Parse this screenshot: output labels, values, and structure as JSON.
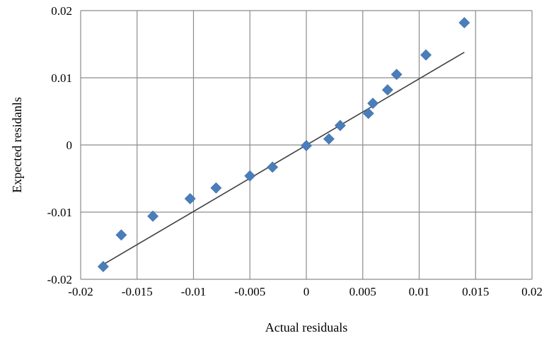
{
  "chart_data": {
    "type": "scatter",
    "title": "",
    "xlabel": "Actual residuals",
    "ylabel": "Expected residanls",
    "xlim": [
      -0.02,
      0.02
    ],
    "ylim": [
      -0.02,
      0.02
    ],
    "x_ticks": [
      -0.02,
      -0.015,
      -0.01,
      -0.005,
      0,
      0.005,
      0.01,
      0.015,
      0.02
    ],
    "x_tick_labels": [
      "-0.02",
      "-0.015",
      "-0.01",
      "-0.005",
      "0",
      "0.005",
      "0.01",
      "0.015",
      "0.02"
    ],
    "y_ticks": [
      0.02,
      0.01,
      0,
      -0.01,
      -0.02
    ],
    "y_tick_labels": [
      "0.02",
      "0.01",
      "0",
      "-0.01",
      "-0.02"
    ],
    "grid": true,
    "legend": "none",
    "marker": "diamond",
    "series": [
      {
        "color": "#4a7ebb",
        "x": [
          -0.018,
          -0.0164,
          -0.0136,
          -0.0103,
          -0.008,
          -0.005,
          -0.003,
          0.0,
          0.002,
          0.003,
          0.0055,
          0.0059,
          0.0072,
          0.008,
          0.0106,
          0.014
        ],
        "y": [
          -0.0181,
          -0.0134,
          -0.0106,
          -0.008,
          -0.0064,
          -0.0046,
          -0.0033,
          -0.0001,
          0.0009,
          0.0029,
          0.0047,
          0.0062,
          0.0082,
          0.0105,
          0.0134,
          0.0182
        ]
      }
    ],
    "fit_line": {
      "color": "#404040",
      "x": [
        -0.018,
        0.014
      ],
      "y": [
        -0.0178,
        0.0138
      ]
    }
  }
}
